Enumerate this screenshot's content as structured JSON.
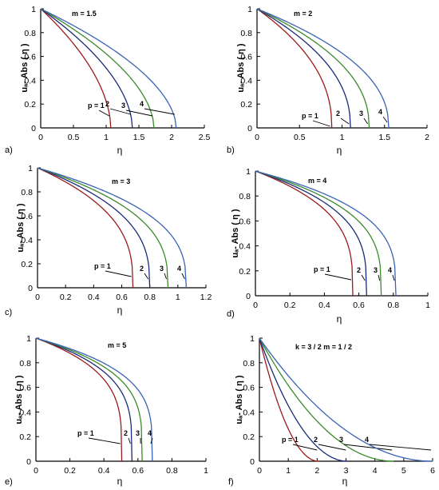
{
  "colors": {
    "p1": "#9b1b1b",
    "p2": "#1a2a7a",
    "p3": "#3a8a2a",
    "p4": "#3b63b5",
    "axis": "#000000"
  },
  "chart_data": [
    {
      "type": "line",
      "panel_label": "a)",
      "annotation": "m = 1.5",
      "xlabel": "η",
      "ylabel": "uₐ- Abs ( η )",
      "xlim": [
        0,
        2.5
      ],
      "ylim": [
        0,
        1
      ],
      "xticks": [
        0,
        0.5,
        1,
        1.5,
        2,
        2.5
      ],
      "xtick_labels": [
        "0",
        "0.5",
        "1",
        "1.5",
        "2",
        "2.5"
      ],
      "yticks": [
        0,
        0.2,
        0.4,
        0.6,
        0.8,
        1
      ],
      "ytick_labels": [
        "0",
        "0.2",
        "0.4",
        "0.6",
        "0.8",
        "1"
      ],
      "series": [
        {
          "name": "p = 1",
          "label_text": "p = 1",
          "x0": 1.07,
          "shape_exp": 0.55
        },
        {
          "name": "2",
          "label_text": "2",
          "x0": 1.4,
          "shape_exp": 0.55
        },
        {
          "name": "3",
          "label_text": "3",
          "x0": 1.73,
          "shape_exp": 0.55
        },
        {
          "name": "4",
          "label_text": "4",
          "x0": 2.07,
          "shape_exp": 0.55
        }
      ]
    },
    {
      "type": "line",
      "panel_label": "b)",
      "annotation": "m = 2",
      "xlabel": "η",
      "ylabel": "uₐ- Abs ( η )",
      "xlim": [
        0,
        2
      ],
      "ylim": [
        0,
        1
      ],
      "xticks": [
        0,
        0.5,
        1,
        1.5,
        2
      ],
      "xtick_labels": [
        "0",
        "0.5",
        "1",
        "1.5",
        "2"
      ],
      "yticks": [
        0,
        0.2,
        0.4,
        0.6,
        0.8,
        1
      ],
      "ytick_labels": [
        "0",
        "0.2",
        "0.4",
        "0.6",
        "0.8",
        "1"
      ],
      "series": [
        {
          "name": "p = 1",
          "label_text": "p = 1",
          "x0": 0.88,
          "shape_exp": 0.45
        },
        {
          "name": "2",
          "label_text": "2",
          "x0": 1.1,
          "shape_exp": 0.45
        },
        {
          "name": "3",
          "label_text": "3",
          "x0": 1.32,
          "shape_exp": 0.45
        },
        {
          "name": "4",
          "label_text": "4",
          "x0": 1.55,
          "shape_exp": 0.45
        }
      ]
    },
    {
      "type": "line",
      "panel_label": "c)",
      "annotation": "m = 3",
      "xlabel": "η",
      "ylabel": "uₐ- Abs ( η )",
      "xlim": [
        0,
        1.2
      ],
      "ylim": [
        0,
        1
      ],
      "xticks": [
        0,
        0.2,
        0.4,
        0.6,
        0.8,
        1,
        1.2
      ],
      "xtick_labels": [
        "0",
        "0.2",
        "0.4",
        "0.6",
        "0.8",
        "1",
        "1.2"
      ],
      "yticks": [
        0,
        0.2,
        0.4,
        0.6,
        0.8,
        1
      ],
      "ytick_labels": [
        "0",
        "0.2",
        "0.4",
        "0.6",
        "0.8",
        "1"
      ],
      "series": [
        {
          "name": "p = 1",
          "label_text": "p = 1",
          "x0": 0.68,
          "shape_exp": 0.36
        },
        {
          "name": "2",
          "label_text": "2",
          "x0": 0.8,
          "shape_exp": 0.36
        },
        {
          "name": "3",
          "label_text": "3",
          "x0": 0.93,
          "shape_exp": 0.36
        },
        {
          "name": "4",
          "label_text": "4",
          "x0": 1.06,
          "shape_exp": 0.36
        }
      ]
    },
    {
      "type": "line",
      "panel_label": "d)",
      "annotation": "m = 4",
      "xlabel": "η",
      "ylabel": "uₐ- Abs ( η )",
      "xlim": [
        0,
        1
      ],
      "ylim": [
        0,
        1
      ],
      "xticks": [
        0,
        0.2,
        0.4,
        0.6,
        0.8,
        1
      ],
      "xtick_labels": [
        "0",
        "0.2",
        "0.4",
        "0.6",
        "0.8",
        "1"
      ],
      "yticks": [
        0,
        0.2,
        0.4,
        0.6,
        0.8,
        1
      ],
      "ytick_labels": [
        "0",
        "0.2",
        "0.4",
        "0.6",
        "0.8",
        "1"
      ],
      "series": [
        {
          "name": "p = 1",
          "label_text": "p = 1",
          "x0": 0.565,
          "shape_exp": 0.3
        },
        {
          "name": "2",
          "label_text": "2",
          "x0": 0.645,
          "shape_exp": 0.3
        },
        {
          "name": "3",
          "label_text": "3",
          "x0": 0.73,
          "shape_exp": 0.3
        },
        {
          "name": "4",
          "label_text": "4",
          "x0": 0.815,
          "shape_exp": 0.3
        }
      ]
    },
    {
      "type": "line",
      "panel_label": "e)",
      "annotation": "m = 5",
      "xlabel": "η",
      "ylabel": "uₐ- Abs ( η )",
      "xlim": [
        0,
        1
      ],
      "ylim": [
        0,
        1
      ],
      "xticks": [
        0,
        0.2,
        0.4,
        0.6,
        0.8,
        1
      ],
      "xtick_labels": [
        "0",
        "0.2",
        "0.4",
        "0.6",
        "0.8",
        "1"
      ],
      "yticks": [
        0,
        0.2,
        0.4,
        0.6,
        0.8,
        1
      ],
      "ytick_labels": [
        "0",
        "0.2",
        "0.4",
        "0.6",
        "0.8",
        "1"
      ],
      "series": [
        {
          "name": "p = 1",
          "label_text": "p = 1",
          "x0": 0.505,
          "shape_exp": 0.26
        },
        {
          "name": "2",
          "label_text": "2",
          "x0": 0.565,
          "shape_exp": 0.26
        },
        {
          "name": "3",
          "label_text": "3",
          "x0": 0.625,
          "shape_exp": 0.26
        },
        {
          "name": "4",
          "label_text": "4",
          "x0": 0.685,
          "shape_exp": 0.26
        }
      ]
    },
    {
      "type": "line",
      "panel_label": "f)",
      "annotation": "k = 3 / 2    m = 1 / 2",
      "xlabel": "η",
      "ylabel": "uₐ- Abs ( η )",
      "xlim": [
        0,
        6
      ],
      "ylim": [
        0,
        1
      ],
      "xticks": [
        0,
        1,
        2,
        3,
        4,
        5,
        6
      ],
      "xtick_labels": [
        "0",
        "1",
        "2",
        "3",
        "4",
        "5",
        "6"
      ],
      "yticks": [
        0,
        0.2,
        0.4,
        0.6,
        0.8,
        1
      ],
      "ytick_labels": [
        "0",
        "0.2",
        "0.4",
        "0.6",
        "0.8",
        "1"
      ],
      "series": [
        {
          "name": "p = 1",
          "label_text": "p = 1",
          "x0": 2.05,
          "shape_exp": 2.0
        },
        {
          "name": "2",
          "label_text": "2",
          "x0": 3.05,
          "shape_exp": 2.0
        },
        {
          "name": "3",
          "label_text": "3",
          "x0": 4.65,
          "shape_exp": 2.0
        },
        {
          "name": "4",
          "label_text": "4",
          "x0": 6.0,
          "shape_exp": 2.0
        }
      ]
    }
  ]
}
